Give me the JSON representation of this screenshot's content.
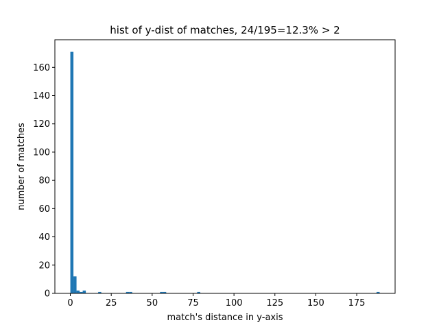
{
  "chart_data": {
    "type": "bar",
    "title": "hist of y-dist of matches, 24/195=12.3% > 2",
    "xlabel": "match's distance in y-axis",
    "ylabel": "number of matches",
    "xlim": [
      -9.45,
      198.45
    ],
    "ylim": [
      0,
      179.55
    ],
    "xticks": [
      0,
      25,
      50,
      75,
      100,
      125,
      150,
      175
    ],
    "yticks": [
      0,
      20,
      40,
      60,
      80,
      100,
      120,
      140,
      160
    ],
    "bar_color": "#1f77b4",
    "bin_width": 1.89,
    "bins": [
      {
        "x": 0.0,
        "count": 171
      },
      {
        "x": 1.89,
        "count": 12
      },
      {
        "x": 3.78,
        "count": 2
      },
      {
        "x": 5.67,
        "count": 1
      },
      {
        "x": 7.56,
        "count": 2
      },
      {
        "x": 17.01,
        "count": 1
      },
      {
        "x": 34.02,
        "count": 1
      },
      {
        "x": 35.91,
        "count": 1
      },
      {
        "x": 54.81,
        "count": 1
      },
      {
        "x": 56.7,
        "count": 1
      },
      {
        "x": 77.49,
        "count": 1
      },
      {
        "x": 187.11,
        "count": 1
      }
    ],
    "grid": false
  }
}
